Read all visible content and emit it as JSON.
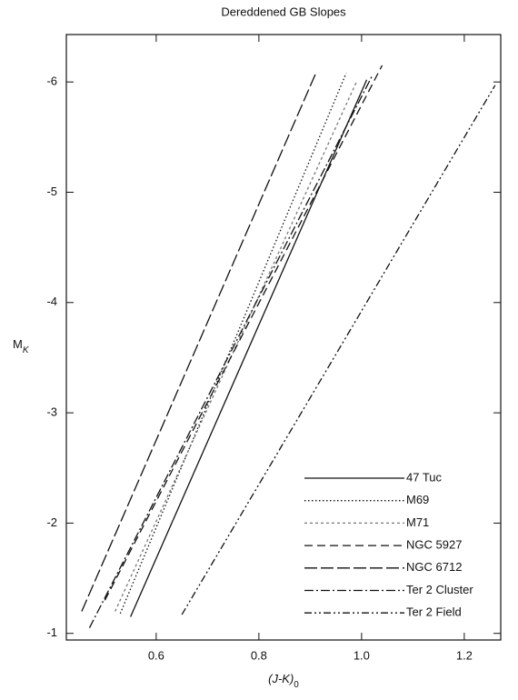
{
  "chart_data": {
    "type": "line",
    "title": "Dereddened GB Slopes",
    "x_label": {
      "text": "(J-K)",
      "subscript": "0"
    },
    "y_label": {
      "text": "M",
      "subscript": "K"
    },
    "xlim": [
      0.425,
      1.271
    ],
    "ylim": [
      -0.94,
      -6.43
    ],
    "xticks": [
      0.6,
      0.8,
      {
        "value": 1,
        "label": "1.0"
      },
      1.2
    ],
    "yticks": [
      -1,
      -2,
      -3,
      -4,
      -5,
      -6
    ],
    "legend": "lower right",
    "series": [
      {
        "name": "47 Tuc",
        "color": "#111111",
        "dash": "none",
        "x": [
          0.55,
          1.01
        ],
        "values": [
          -1.15,
          -6.02
        ]
      },
      {
        "name": "M69",
        "color": "#111111",
        "dash": "1.5,2.5",
        "x": [
          0.53,
          0.97
        ],
        "values": [
          -1.18,
          -6.08
        ]
      },
      {
        "name": "M71",
        "color": "#777777",
        "dash": "3,3",
        "x": [
          0.52,
          0.99
        ],
        "values": [
          -1.2,
          -6.0
        ]
      },
      {
        "name": "NGC 5927",
        "color": "#111111",
        "dash": "9,5",
        "x": [
          0.5,
          1.04
        ],
        "values": [
          -1.3,
          -6.15
        ]
      },
      {
        "name": "NGC 6712",
        "color": "#111111",
        "dash": "14,4",
        "x": [
          0.455,
          0.91
        ],
        "values": [
          -1.2,
          -6.07
        ]
      },
      {
        "name": "Ter 2 Cluster",
        "color": "#111111",
        "dash": "10,3,2,3",
        "x": [
          0.47,
          1.02
        ],
        "values": [
          -1.05,
          -6.05
        ]
      },
      {
        "name": "Ter 2 Field",
        "color": "#111111",
        "dash": "8,3,2,3,2,3",
        "x": [
          0.65,
          1.26
        ],
        "values": [
          -1.17,
          -5.97
        ]
      }
    ]
  }
}
